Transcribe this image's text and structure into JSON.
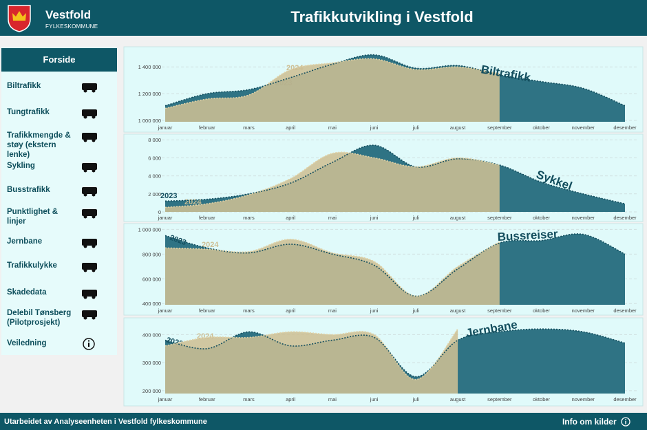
{
  "header": {
    "brand": "Vestfold",
    "subbrand": "FYLKESKOMMUNE",
    "title": "Trafikkutvikling i Vestfold"
  },
  "sidebar": {
    "home": "Forside",
    "items": [
      "Biltrafikk",
      "Tungtrafikk",
      "Trafikkmengde & støy (ekstern lenke)",
      "Sykling",
      "Busstrafikk",
      "Punktlighet & linjer",
      "Jernbane",
      "Trafikkulykke",
      "Skadedata",
      "Delebil Tønsberg (Pilotprosjekt)",
      "Veiledning"
    ]
  },
  "footer": {
    "credit": "Utarbeidet av Analyseenheten i Vestfold fylkeskommune",
    "info": "Info om kilder"
  },
  "chart_data": [
    {
      "type": "area",
      "title": "Biltrafikk",
      "categories": [
        "januar",
        "februar",
        "mars",
        "april",
        "mai",
        "juni",
        "juli",
        "august",
        "september",
        "oktober",
        "november",
        "desember"
      ],
      "series": [
        {
          "name": "2023",
          "color": "#2f7384",
          "values": [
            1110000,
            1200000,
            1230000,
            1320000,
            1420000,
            1490000,
            1390000,
            1410000,
            1340000,
            1290000,
            1240000,
            1110000
          ]
        },
        {
          "name": "2024",
          "color": "#cdbf94",
          "values": [
            1090000,
            1160000,
            1190000,
            1380000,
            1430000,
            1460000,
            1380000,
            1400000,
            1350000,
            null,
            null,
            null
          ]
        }
      ],
      "ylim": [
        990000,
        1540000
      ],
      "yticks": [
        {
          "value": 1000000,
          "label": "1 000 000"
        },
        {
          "value": 1200000,
          "label": "1 200 000"
        },
        {
          "value": 1400000,
          "label": "1 400 000"
        }
      ],
      "grid": true
    },
    {
      "type": "area",
      "title": "Sykkel",
      "categories": [
        "januar",
        "februar",
        "mars",
        "april",
        "mai",
        "juni",
        "juli",
        "august",
        "september",
        "oktober",
        "november",
        "desember"
      ],
      "series": [
        {
          "name": "2023",
          "color": "#2f7384",
          "values": [
            1200,
            1400,
            2000,
            3200,
            5500,
            7400,
            5000,
            5900,
            5200,
            3300,
            2000,
            900
          ]
        },
        {
          "name": "2024",
          "color": "#cdbf94",
          "values": [
            500,
            900,
            1900,
            3700,
            6500,
            6000,
            5000,
            6000,
            5200,
            null,
            null,
            null
          ]
        }
      ],
      "ylim": [
        0,
        8400
      ],
      "yticks": [
        0,
        {
          "value": 2000,
          "label": "2 000"
        },
        {
          "value": 4000,
          "label": "4 000"
        },
        {
          "value": 6000,
          "label": "6 000"
        },
        {
          "value": 8000,
          "label": "8 000"
        }
      ],
      "grid": true
    },
    {
      "type": "area",
      "title": "Bussreiser",
      "categories": [
        "januar",
        "februar",
        "mars",
        "april",
        "mai",
        "juni",
        "juli",
        "august",
        "september",
        "oktober",
        "november",
        "desember"
      ],
      "series": [
        {
          "name": "2023",
          "color": "#2f7384",
          "values": [
            950000,
            850000,
            810000,
            880000,
            800000,
            710000,
            460000,
            680000,
            890000,
            910000,
            960000,
            800000
          ]
        },
        {
          "name": "2024",
          "color": "#cdbf94",
          "values": [
            850000,
            840000,
            820000,
            920000,
            810000,
            740000,
            460000,
            700000,
            900000,
            null,
            null,
            null
          ]
        }
      ],
      "ylim": [
        390000,
        1030000
      ],
      "yticks": [
        {
          "value": 400000,
          "label": "400 000"
        },
        {
          "value": 600000,
          "label": "600 000"
        },
        {
          "value": 800000,
          "label": "800 000"
        },
        {
          "value": 1000000,
          "label": "1 000 000"
        }
      ],
      "grid": true
    },
    {
      "type": "area",
      "title": "Jernbane",
      "categories": [
        "januar",
        "februar",
        "mars",
        "april",
        "mai",
        "juni",
        "juli",
        "august",
        "september",
        "oktober",
        "november",
        "desember"
      ],
      "series": [
        {
          "name": "2023",
          "color": "#2f7384",
          "values": [
            380000,
            350000,
            410000,
            360000,
            380000,
            390000,
            250000,
            380000,
            410000,
            420000,
            410000,
            370000
          ]
        },
        {
          "name": "2024",
          "color": "#cdbf94",
          "values": [
            360000,
            390000,
            390000,
            410000,
            400000,
            400000,
            240000,
            420000,
            null,
            null,
            null,
            null
          ]
        }
      ],
      "ylim": [
        190000,
        450000
      ],
      "yticks": [
        {
          "value": 200000,
          "label": "200 000"
        },
        {
          "value": 300000,
          "label": "300 000"
        },
        {
          "value": 400000,
          "label": "400 000"
        }
      ],
      "grid": true
    }
  ]
}
